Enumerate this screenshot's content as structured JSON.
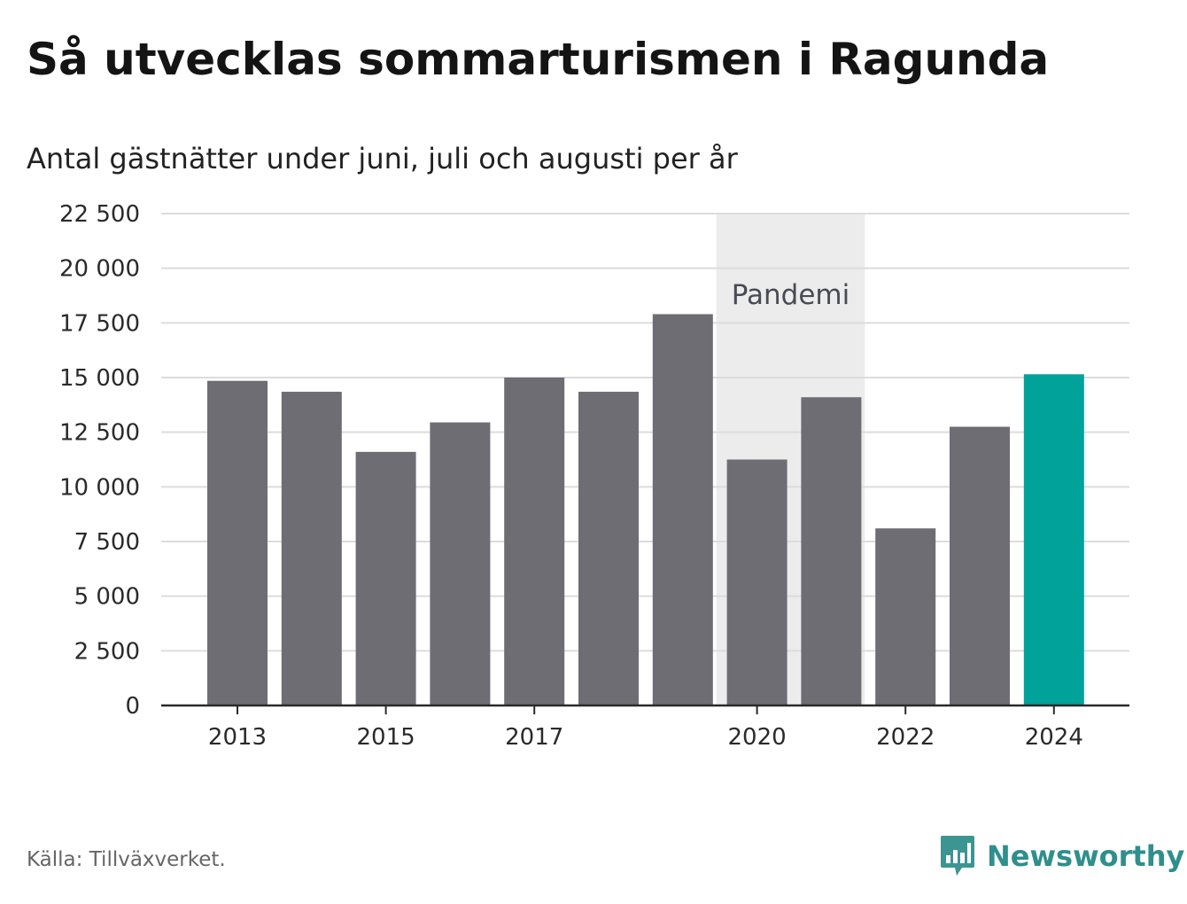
{
  "chart_data": {
    "type": "bar",
    "title": "Så utvecklas sommarturismen i Ragunda",
    "subtitle": "Antal gästnätter under juni, juli och augusti per år",
    "categories": [
      "2013",
      "2014",
      "2015",
      "2016",
      "2017",
      "2018",
      "2019",
      "2020",
      "2021",
      "2022",
      "2023",
      "2024"
    ],
    "values": [
      14850,
      14350,
      11600,
      12950,
      15000,
      14350,
      17900,
      11250,
      14100,
      8100,
      12750,
      15150
    ],
    "x_tick_labels": [
      "2013",
      "2015",
      "2017",
      "2020",
      "2022",
      "2024"
    ],
    "y_ticks": [
      0,
      2500,
      5000,
      7500,
      10000,
      12500,
      15000,
      17500,
      20000,
      22500
    ],
    "y_tick_labels": [
      "0",
      "2 500",
      "5 000",
      "7 500",
      "10 000",
      "12 500",
      "15 000",
      "17 500",
      "20 000",
      "22 500"
    ],
    "ylim": [
      0,
      22500
    ],
    "grid": true,
    "bar_color": "#6e6d73",
    "highlight_color": "#00a29a",
    "highlight_category": "2024",
    "annotation": {
      "label": "Pandemi",
      "from": "2020",
      "to": "2021",
      "color": "#ececec"
    }
  },
  "footer": {
    "source": "Källa: Tillväxverket.",
    "brand": "Newsworthy",
    "brand_icon": "bar-chart-speech-bubble-icon",
    "brand_color": "#2f8f8c"
  }
}
